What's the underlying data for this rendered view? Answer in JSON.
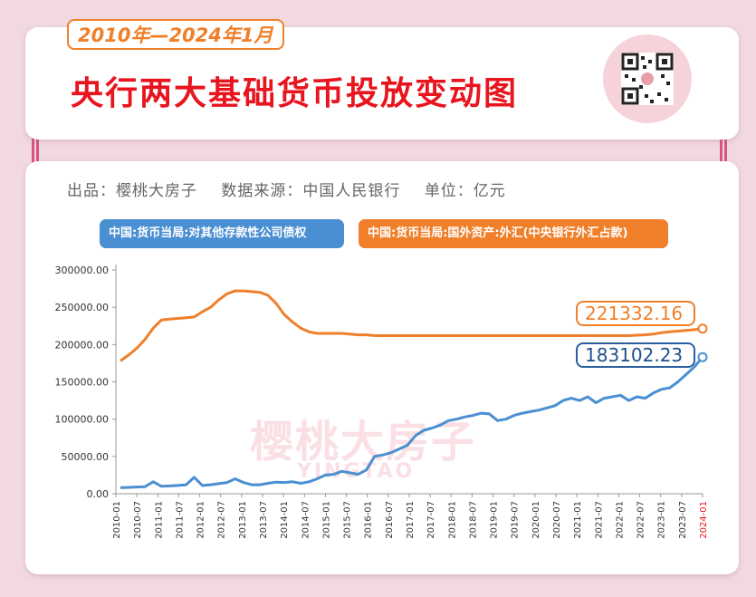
{
  "header": {
    "date_range": "2010年—2024年1月",
    "title": "央行两大基础货币投放变动图",
    "qr_icon": "qr-code-icon"
  },
  "credits": {
    "producer": "出品：樱桃大房子",
    "source": "数据来源：中国人民银行",
    "unit": "单位：亿元"
  },
  "watermark": {
    "cn": "樱桃大房子",
    "en": "YINGTAO"
  },
  "colors": {
    "blue": "#4a8fd2",
    "orange": "#f07f2a",
    "title_red": "#e8141e"
  },
  "chart_data": {
    "type": "line",
    "ylim": [
      0,
      300000
    ],
    "y_ticks": [
      "0.00",
      "50000.00",
      "100000.00",
      "150000.00",
      "200000.00",
      "250000.00",
      "300000.00"
    ],
    "x_ticks": [
      "2010-01",
      "2010-07",
      "2011-01",
      "2011-07",
      "2012-01",
      "2012-07",
      "2013-01",
      "2013-07",
      "2014-01",
      "2014-07",
      "2015-01",
      "2015-07",
      "2016-01",
      "2016-07",
      "2017-01",
      "2017-07",
      "2018-01",
      "2018-07",
      "2019-01",
      "2019-07",
      "2020-01",
      "2020-07",
      "2021-01",
      "2021-07",
      "2022-01",
      "2022-07",
      "2023-01",
      "2023-07",
      "2024-01"
    ],
    "series": [
      {
        "name": "中国:货币当局:对其他存款性公司债权",
        "color": "#4a8fd2",
        "last_label": "183102.23",
        "values": [
          8000,
          8500,
          9000,
          9500,
          16000,
          10000,
          10500,
          11000,
          12000,
          22000,
          11000,
          12000,
          13500,
          15000,
          20000,
          15000,
          12000,
          12000,
          14000,
          15500,
          15000,
          16000,
          14000,
          16000,
          20000,
          25000,
          26000,
          30000,
          28000,
          26000,
          32000,
          50000,
          52000,
          55000,
          60000,
          65000,
          78000,
          85000,
          88000,
          92000,
          98000,
          100000,
          103000,
          105000,
          108000,
          107000,
          98000,
          100000,
          105000,
          108000,
          110000,
          112000,
          115000,
          118000,
          125000,
          128000,
          125000,
          130000,
          122000,
          128000,
          130000,
          132000,
          125000,
          130000,
          128000,
          135000,
          140000,
          142000,
          150000,
          160000,
          170000,
          183102.23
        ]
      },
      {
        "name": "中国:货币当局:国外资产:外汇(中央银行外汇占款)",
        "color": "#f07f2a",
        "last_label": "221332.16",
        "values": [
          178000,
          186000,
          195000,
          207000,
          222000,
          233000,
          234000,
          235000,
          236000,
          237000,
          244000,
          250000,
          260000,
          268000,
          272000,
          272000,
          271000,
          270000,
          266000,
          255000,
          240000,
          230000,
          222000,
          217000,
          215000,
          215000,
          215000,
          215000,
          214000,
          213000,
          213000,
          212000,
          212000,
          212000,
          212000,
          212000,
          212000,
          212000,
          212000,
          212000,
          212000,
          212000,
          212000,
          212000,
          212000,
          212000,
          212000,
          212000,
          212000,
          212000,
          212000,
          212000,
          212000,
          212000,
          212000,
          212000,
          212000,
          212000,
          212000,
          212000,
          212000,
          212000,
          212000,
          212500,
          213000,
          214000,
          216000,
          217000,
          218000,
          219000,
          220000,
          221332.16
        ]
      }
    ],
    "legend": "top"
  }
}
